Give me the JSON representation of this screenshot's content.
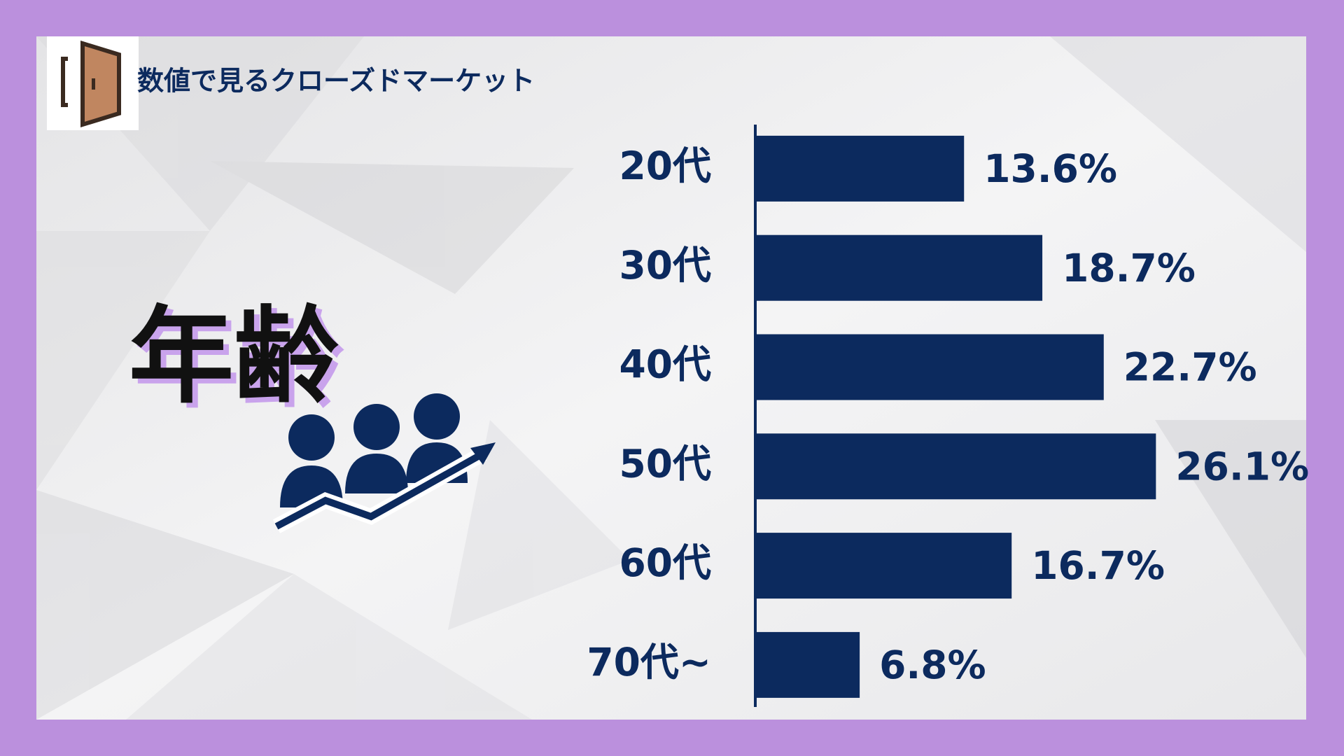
{
  "header": {
    "title": "数値で見るクローズドマーケット"
  },
  "chart_data": {
    "type": "bar",
    "orientation": "horizontal",
    "title": "年齢",
    "categories": [
      "20代",
      "30代",
      "40代",
      "50代",
      "60代",
      "70代~"
    ],
    "values": [
      13.6,
      18.7,
      22.7,
      26.1,
      16.7,
      6.8
    ],
    "value_labels": [
      "13.6%",
      "18.7%",
      "22.7%",
      "26.1%",
      "16.7%",
      "6.8%"
    ],
    "color": "#0c2a5e",
    "xlim": [
      0,
      28
    ]
  }
}
